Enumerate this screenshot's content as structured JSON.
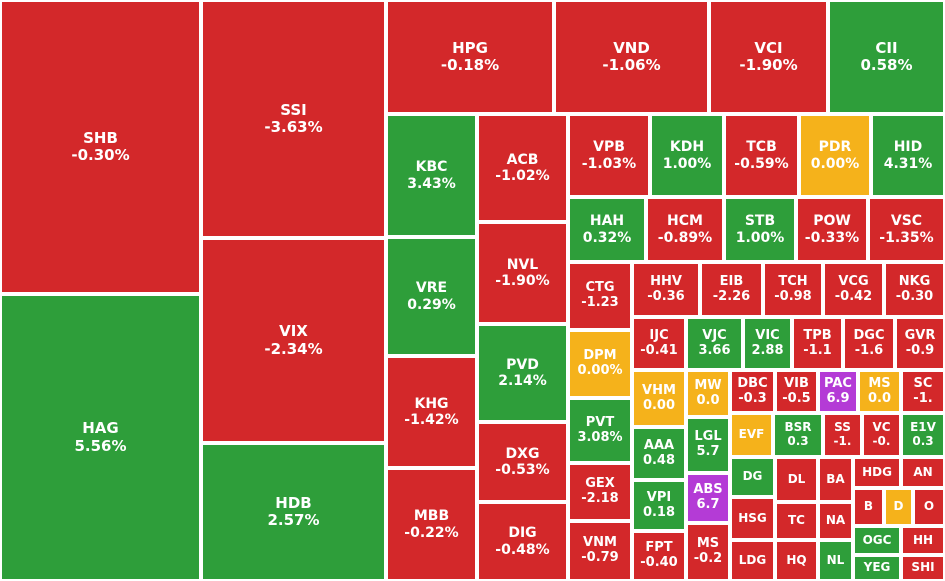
{
  "chart_data": {
    "type": "treemap",
    "title": "",
    "colors": {
      "down": "#d3282a",
      "up": "#2e9e3a",
      "flat": "#f5b21b",
      "ceiling": "#b43bd6"
    },
    "tiles": [
      {
        "ticker": "SHB",
        "change": "-0.30%",
        "status": "down"
      },
      {
        "ticker": "HAG",
        "change": "5.56%",
        "status": "up"
      },
      {
        "ticker": "SSI",
        "change": "-3.63%",
        "status": "down"
      },
      {
        "ticker": "VIX",
        "change": "-2.34%",
        "status": "down"
      },
      {
        "ticker": "HDB",
        "change": "2.57%",
        "status": "up"
      },
      {
        "ticker": "HPG",
        "change": "-0.18%",
        "status": "down"
      },
      {
        "ticker": "VND",
        "change": "-1.06%",
        "status": "down"
      },
      {
        "ticker": "VCI",
        "change": "-1.90%",
        "status": "down"
      },
      {
        "ticker": "CII",
        "change": "0.58%",
        "status": "up"
      },
      {
        "ticker": "KBC",
        "change": "3.43%",
        "status": "up"
      },
      {
        "ticker": "VRE",
        "change": "0.29%",
        "status": "up"
      },
      {
        "ticker": "KHG",
        "change": "-1.42%",
        "status": "down"
      },
      {
        "ticker": "MBB",
        "change": "-0.22%",
        "status": "down"
      },
      {
        "ticker": "ACB",
        "change": "-1.02%",
        "status": "down"
      },
      {
        "ticker": "NVL",
        "change": "-1.90%",
        "status": "down"
      },
      {
        "ticker": "PVD",
        "change": "2.14%",
        "status": "up"
      },
      {
        "ticker": "DXG",
        "change": "-0.53%",
        "status": "down"
      },
      {
        "ticker": "DIG",
        "change": "-0.48%",
        "status": "down"
      },
      {
        "ticker": "VPB",
        "change": "-1.03%",
        "status": "down"
      },
      {
        "ticker": "KDH",
        "change": "1.00%",
        "status": "up"
      },
      {
        "ticker": "TCB",
        "change": "-0.59%",
        "status": "down"
      },
      {
        "ticker": "PDR",
        "change": "0.00%",
        "status": "flat"
      },
      {
        "ticker": "HID",
        "change": "4.31%",
        "status": "up"
      },
      {
        "ticker": "HAH",
        "change": "0.32%",
        "status": "up"
      },
      {
        "ticker": "HCM",
        "change": "-0.89%",
        "status": "down"
      },
      {
        "ticker": "STB",
        "change": "1.00%",
        "status": "up"
      },
      {
        "ticker": "POW",
        "change": "-0.33%",
        "status": "down"
      },
      {
        "ticker": "VSC",
        "change": "-1.35%",
        "status": "down"
      },
      {
        "ticker": "CTG",
        "change": "-1.23",
        "status": "down"
      },
      {
        "ticker": "HHV",
        "change": "-0.36",
        "status": "down"
      },
      {
        "ticker": "EIB",
        "change": "-2.26",
        "status": "down"
      },
      {
        "ticker": "TCH",
        "change": "-0.98",
        "status": "down"
      },
      {
        "ticker": "VCG",
        "change": "-0.42",
        "status": "down"
      },
      {
        "ticker": "NKG",
        "change": "-0.30",
        "status": "down"
      },
      {
        "ticker": "DPM",
        "change": "0.00%",
        "status": "flat"
      },
      {
        "ticker": "IJC",
        "change": "-0.41",
        "status": "down"
      },
      {
        "ticker": "VJC",
        "change": "3.66",
        "status": "up"
      },
      {
        "ticker": "VIC",
        "change": "2.88",
        "status": "up"
      },
      {
        "ticker": "TPB",
        "change": "-1.1",
        "status": "down"
      },
      {
        "ticker": "DGC",
        "change": "-1.6",
        "status": "down"
      },
      {
        "ticker": "GVR",
        "change": "-0.9",
        "status": "down"
      },
      {
        "ticker": "PVT",
        "change": "3.08%",
        "status": "up"
      },
      {
        "ticker": "VHM",
        "change": "0.00",
        "status": "flat"
      },
      {
        "ticker": "MW",
        "change": "0.0",
        "status": "flat"
      },
      {
        "ticker": "DBC",
        "change": "-0.3",
        "status": "down"
      },
      {
        "ticker": "VIB",
        "change": "-0.5",
        "status": "down"
      },
      {
        "ticker": "PAC",
        "change": "6.9",
        "status": "ceiling"
      },
      {
        "ticker": "MS",
        "change": "0.0",
        "status": "flat"
      },
      {
        "ticker": "SC",
        "change": "-1.",
        "status": "down"
      },
      {
        "ticker": "AAA",
        "change": "0.48",
        "status": "up"
      },
      {
        "ticker": "LGL",
        "change": "5.7",
        "status": "up"
      },
      {
        "ticker": "EVF",
        "change": "",
        "status": "flat"
      },
      {
        "ticker": "BSR",
        "change": "0.3",
        "status": "up"
      },
      {
        "ticker": "SS",
        "change": "-1.",
        "status": "down"
      },
      {
        "ticker": "VC",
        "change": "-0.",
        "status": "down"
      },
      {
        "ticker": "E1V",
        "change": "0.3",
        "status": "up"
      },
      {
        "ticker": "GEX",
        "change": "-2.18",
        "status": "down"
      },
      {
        "ticker": "DG",
        "change": "",
        "status": "up"
      },
      {
        "ticker": "DL",
        "change": "",
        "status": "down"
      },
      {
        "ticker": "BA",
        "change": "",
        "status": "down"
      },
      {
        "ticker": "HDG",
        "change": "",
        "status": "down"
      },
      {
        "ticker": "AN",
        "change": "",
        "status": "down"
      },
      {
        "ticker": "VPI",
        "change": "0.18",
        "status": "up"
      },
      {
        "ticker": "ABS",
        "change": "6.7",
        "status": "ceiling"
      },
      {
        "ticker": "HSG",
        "change": "",
        "status": "down"
      },
      {
        "ticker": "TC",
        "change": "",
        "status": "down"
      },
      {
        "ticker": "NA",
        "change": "",
        "status": "down"
      },
      {
        "ticker": "B",
        "change": "",
        "status": "down"
      },
      {
        "ticker": "D",
        "change": "",
        "status": "flat"
      },
      {
        "ticker": "O",
        "change": "",
        "status": "down"
      },
      {
        "ticker": "VNM",
        "change": "-0.79",
        "status": "down"
      },
      {
        "ticker": "FPT",
        "change": "-0.40",
        "status": "down"
      },
      {
        "ticker": "MS",
        "change": "-0.2",
        "status": "down"
      },
      {
        "ticker": "LDG",
        "change": "",
        "status": "down"
      },
      {
        "ticker": "HQ",
        "change": "",
        "status": "down"
      },
      {
        "ticker": "NL",
        "change": "",
        "status": "up"
      },
      {
        "ticker": "OGC",
        "change": "",
        "status": "up"
      },
      {
        "ticker": "HH",
        "change": "",
        "status": "down"
      },
      {
        "ticker": "YEG",
        "change": "",
        "status": "up"
      },
      {
        "ticker": "SHI",
        "change": "",
        "status": "down"
      }
    ]
  }
}
